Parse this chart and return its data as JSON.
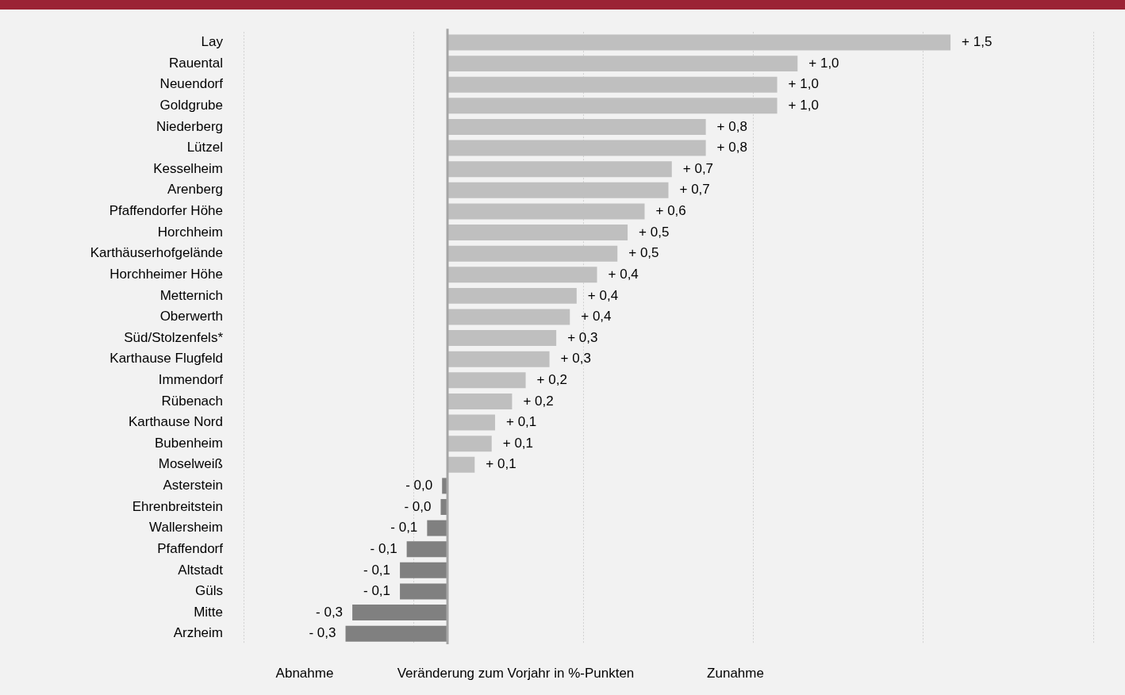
{
  "chart_data": {
    "type": "bar",
    "orientation": "horizontal",
    "xlabel": "Veränderung zum Vorjahr in %-Punkten",
    "annotations": [
      "Abnahme",
      "Zunahme"
    ],
    "categories": [
      "Lay",
      "Rauental",
      "Neuendorf",
      "Goldgrube",
      "Niederberg",
      "Lützel",
      "Kesselheim",
      "Arenberg",
      "Pfaffendorfer Höhe",
      "Horchheim",
      "Karthäuserhofgelände",
      "Horchheimer Höhe",
      "Metternich",
      "Oberwerth",
      "Süd/Stolzenfels*",
      "Karthause Flugfeld",
      "Immendorf",
      "Rübenach",
      "Karthause Nord",
      "Bubenheim",
      "Moselweiß",
      "Asterstein",
      "Ehrenbreitstein",
      "Wallersheim",
      "Pfaffendorf",
      "Altstadt",
      "Güls",
      "Mitte",
      "Arzheim"
    ],
    "values": [
      1.48,
      1.03,
      0.97,
      0.97,
      0.76,
      0.76,
      0.66,
      0.65,
      0.58,
      0.53,
      0.5,
      0.44,
      0.38,
      0.36,
      0.32,
      0.3,
      0.23,
      0.19,
      0.14,
      0.13,
      0.08,
      -0.016,
      -0.02,
      -0.06,
      -0.12,
      -0.14,
      -0.14,
      -0.28,
      -0.3
    ],
    "value_labels": [
      "+ 1,5",
      "+ 1,0",
      "+ 1,0",
      "+ 1,0",
      "+ 0,8",
      "+ 0,8",
      "+ 0,7",
      "+ 0,7",
      "+ 0,6",
      "+ 0,5",
      "+ 0,5",
      "+ 0,4",
      "+ 0,4",
      "+ 0,4",
      "+ 0,3",
      "+ 0,3",
      "+ 0,2",
      "+ 0,2",
      "+ 0,1",
      "+ 0,1",
      "+ 0,1",
      "- 0,0",
      "- 0,0",
      "- 0,1",
      "- 0,1",
      "- 0,1",
      "- 0,1",
      "- 0,3",
      "- 0,3"
    ],
    "colors": [
      "#bfbfbf",
      "#bfbfbf",
      "#bfbfbf",
      "#bfbfbf",
      "#bfbfbf",
      "#bfbfbf",
      "#bfbfbf",
      "#bfbfbf",
      "#bfbfbf",
      "#bfbfbf",
      "#bfbfbf",
      "#bfbfbf",
      "#bfbfbf",
      "#bfbfbf",
      "#bfbfbf",
      "#bfbfbf",
      "#bfbfbf",
      "#bfbfbf",
      "#bfbfbf",
      "#bfbfbf",
      "#bfbfbf",
      "#808080",
      "#808080",
      "#808080",
      "#808080",
      "#808080",
      "#808080",
      "#808080",
      "#808080"
    ],
    "xlim": [
      -0.6,
      1.9
    ],
    "xticks": [
      {
        "value": -0.6,
        "label": null
      },
      {
        "value": -0.1,
        "label": null
      },
      {
        "value": 0.4,
        "label": null
      },
      {
        "value": 0.9,
        "label": null
      },
      {
        "value": 1.4,
        "label": null
      },
      {
        "value": 1.9,
        "label": null
      }
    ],
    "grid": "x",
    "legend": false,
    "tick_labels": "y"
  }
}
